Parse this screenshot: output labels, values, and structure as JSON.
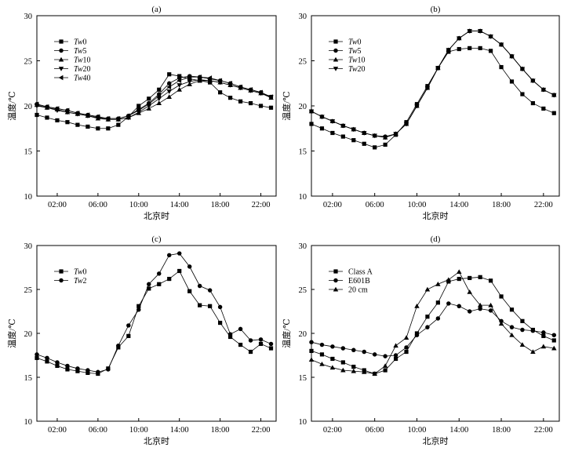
{
  "chart_data": [
    {
      "type": "line",
      "title": "(a)",
      "xlabel": "北京时",
      "ylabel": "温度/℃",
      "ylim": [
        10,
        30
      ],
      "yticks": [
        10,
        15,
        20,
        25,
        30
      ],
      "xlim": [
        0,
        23.5
      ],
      "xticks": [
        2,
        6,
        10,
        14,
        18,
        22
      ],
      "xtick_labels": [
        "02:00",
        "06:00",
        "10:00",
        "14:00",
        "18:00",
        "22:00"
      ],
      "legend": "top-left",
      "x": [
        0,
        1,
        2,
        3,
        4,
        5,
        6,
        7,
        8,
        9,
        10,
        11,
        12,
        13,
        14,
        15,
        16,
        17,
        18,
        19,
        20,
        21,
        22,
        23
      ],
      "series": [
        {
          "name": "Tw0",
          "marker": "square",
          "values": [
            19.0,
            18.7,
            18.4,
            18.2,
            17.9,
            17.7,
            17.5,
            17.5,
            17.9,
            18.8,
            20.0,
            20.8,
            21.8,
            23.5,
            23.3,
            23.0,
            22.8,
            22.6,
            21.5,
            20.9,
            20.5,
            20.3,
            20.0,
            19.8
          ]
        },
        {
          "name": "Tw5",
          "marker": "circle",
          "values": [
            20.2,
            19.9,
            19.7,
            19.5,
            19.2,
            19.0,
            18.8,
            18.6,
            18.6,
            18.9,
            19.6,
            20.3,
            21.3,
            22.5,
            23.1,
            23.3,
            23.2,
            23.0,
            22.8,
            22.5,
            22.1,
            21.8,
            21.5,
            21.0
          ]
        },
        {
          "name": "Tw10",
          "marker": "triangle-up",
          "values": [
            20.1,
            19.8,
            19.6,
            19.3,
            19.1,
            18.9,
            18.6,
            18.5,
            18.5,
            18.7,
            19.2,
            19.7,
            20.3,
            21.0,
            21.8,
            22.4,
            22.8,
            22.8,
            22.6,
            22.3,
            22.0,
            21.7,
            21.4,
            20.9
          ]
        },
        {
          "name": "Tw20",
          "marker": "triangle-down",
          "values": [
            20.0,
            19.8,
            19.5,
            19.3,
            19.1,
            18.9,
            18.7,
            18.5,
            18.5,
            18.7,
            19.3,
            20.0,
            20.8,
            21.6,
            22.3,
            22.7,
            22.9,
            22.8,
            22.6,
            22.3,
            22.0,
            21.7,
            21.4,
            21.0
          ]
        },
        {
          "name": "Tw40",
          "marker": "triangle-left",
          "values": [
            20.2,
            19.9,
            19.7,
            19.5,
            19.2,
            19.0,
            18.8,
            18.6,
            18.6,
            18.9,
            19.5,
            20.2,
            21.1,
            22.1,
            22.8,
            23.2,
            23.2,
            23.1,
            22.8,
            22.5,
            22.1,
            21.8,
            21.5,
            21.0
          ]
        }
      ]
    },
    {
      "type": "line",
      "title": "(b)",
      "xlabel": "北京时",
      "ylabel": "温度/℃",
      "ylim": [
        10,
        30
      ],
      "yticks": [
        10,
        15,
        20,
        25,
        30
      ],
      "xlim": [
        0,
        23.5
      ],
      "xticks": [
        2,
        6,
        10,
        14,
        18,
        22
      ],
      "xtick_labels": [
        "02:00",
        "06:00",
        "10:00",
        "14:00",
        "18:00",
        "22:00"
      ],
      "legend": "top-left",
      "x": [
        0,
        1,
        2,
        3,
        4,
        5,
        6,
        7,
        8,
        9,
        10,
        11,
        12,
        13,
        14,
        15,
        16,
        17,
        18,
        19,
        20,
        21,
        22,
        23
      ],
      "series": [
        {
          "name": "Tw0",
          "marker": "square",
          "values": [
            18.0,
            17.5,
            17.0,
            16.6,
            16.2,
            15.8,
            15.4,
            15.7,
            16.8,
            18.2,
            20.2,
            22.2,
            24.2,
            26.0,
            26.3,
            26.4,
            26.4,
            26.1,
            24.3,
            22.7,
            21.3,
            20.3,
            19.7,
            19.2
          ]
        },
        {
          "name": "Tw5",
          "marker": "circle",
          "values": [
            19.4,
            18.8,
            18.3,
            17.8,
            17.4,
            17.0,
            16.7,
            16.6,
            16.9,
            18.0,
            20.0,
            22.0,
            24.2,
            26.2,
            27.5,
            28.3,
            28.3,
            27.7,
            26.8,
            25.5,
            24.1,
            22.8,
            21.8,
            21.2
          ]
        },
        {
          "name": "Tw10",
          "marker": "triangle-up",
          "values": [
            19.4,
            18.8,
            18.3,
            17.8,
            17.4,
            17.0,
            16.7,
            16.5,
            16.9,
            18.0,
            20.0,
            22.0,
            24.2,
            26.2,
            27.5,
            28.3,
            28.3,
            27.7,
            26.8,
            25.5,
            24.1,
            22.8,
            21.8,
            21.2
          ]
        },
        {
          "name": "Tw20",
          "marker": "triangle-down",
          "values": [
            19.4,
            18.8,
            18.3,
            17.8,
            17.4,
            17.0,
            16.7,
            16.5,
            16.9,
            18.0,
            20.0,
            22.0,
            24.2,
            26.2,
            27.5,
            28.3,
            28.3,
            27.7,
            26.8,
            25.5,
            24.1,
            22.8,
            21.8,
            21.2
          ]
        }
      ]
    },
    {
      "type": "line",
      "title": "(c)",
      "xlabel": "北京时",
      "ylabel": "温度/℃",
      "ylim": [
        10,
        30
      ],
      "yticks": [
        10,
        15,
        20,
        25,
        30
      ],
      "xlim": [
        0,
        23.5
      ],
      "xticks": [
        2,
        6,
        10,
        14,
        18,
        22
      ],
      "xtick_labels": [
        "02:00",
        "06:00",
        "10:00",
        "14:00",
        "18:00",
        "22:00"
      ],
      "legend": "top-left",
      "x": [
        0,
        1,
        2,
        3,
        4,
        5,
        6,
        7,
        8,
        9,
        10,
        11,
        12,
        13,
        14,
        15,
        16,
        17,
        18,
        19,
        20,
        21,
        22,
        23
      ],
      "series": [
        {
          "name": "Tw0",
          "marker": "square",
          "values": [
            17.2,
            16.8,
            16.3,
            15.9,
            15.7,
            15.5,
            15.4,
            16.0,
            18.4,
            19.7,
            23.1,
            25.1,
            25.6,
            26.2,
            27.1,
            24.8,
            23.2,
            23.1,
            21.2,
            19.6,
            18.7,
            17.9,
            18.8,
            18.3
          ]
        },
        {
          "name": "Tw2",
          "marker": "circle",
          "values": [
            17.6,
            17.2,
            16.7,
            16.3,
            16.0,
            15.8,
            15.6,
            15.9,
            18.6,
            20.9,
            22.7,
            25.6,
            26.8,
            28.9,
            29.1,
            27.6,
            25.4,
            24.9,
            23.0,
            19.9,
            20.5,
            19.2,
            19.3,
            18.8
          ]
        }
      ]
    },
    {
      "type": "line",
      "title": "(d)",
      "xlabel": "北京时",
      "ylabel": "温度/℃",
      "ylim": [
        10,
        30
      ],
      "yticks": [
        10,
        15,
        20,
        25,
        30
      ],
      "xlim": [
        0,
        23.5
      ],
      "xticks": [
        2,
        6,
        10,
        14,
        18,
        22
      ],
      "xtick_labels": [
        "02:00",
        "06:00",
        "10:00",
        "14:00",
        "18:00",
        "22:00"
      ],
      "legend": "top-left",
      "x": [
        0,
        1,
        2,
        3,
        4,
        5,
        6,
        7,
        8,
        9,
        10,
        11,
        12,
        13,
        14,
        15,
        16,
        17,
        18,
        19,
        20,
        21,
        22,
        23
      ],
      "series": [
        {
          "name": "Class A",
          "marker": "square",
          "values": [
            18.0,
            17.6,
            17.1,
            16.7,
            16.2,
            15.8,
            15.4,
            15.8,
            17.1,
            17.9,
            20.0,
            21.9,
            23.5,
            25.9,
            26.2,
            26.3,
            26.4,
            26.0,
            24.2,
            22.7,
            21.4,
            20.4,
            19.7,
            19.2
          ]
        },
        {
          "name": "E601B",
          "marker": "circle",
          "values": [
            19.0,
            18.7,
            18.5,
            18.3,
            18.1,
            17.9,
            17.6,
            17.4,
            17.5,
            18.4,
            19.8,
            20.7,
            21.7,
            23.4,
            23.1,
            22.5,
            22.8,
            22.6,
            21.4,
            20.7,
            20.4,
            20.3,
            20.1,
            19.8
          ]
        },
        {
          "name": "20 cm",
          "marker": "triangle-up",
          "values": [
            17.0,
            16.5,
            16.1,
            15.8,
            15.7,
            15.6,
            15.4,
            16.3,
            18.6,
            19.5,
            23.1,
            25.0,
            25.6,
            26.1,
            27.0,
            24.7,
            23.2,
            23.2,
            21.1,
            19.8,
            18.7,
            17.9,
            18.5,
            18.3
          ]
        }
      ]
    }
  ]
}
